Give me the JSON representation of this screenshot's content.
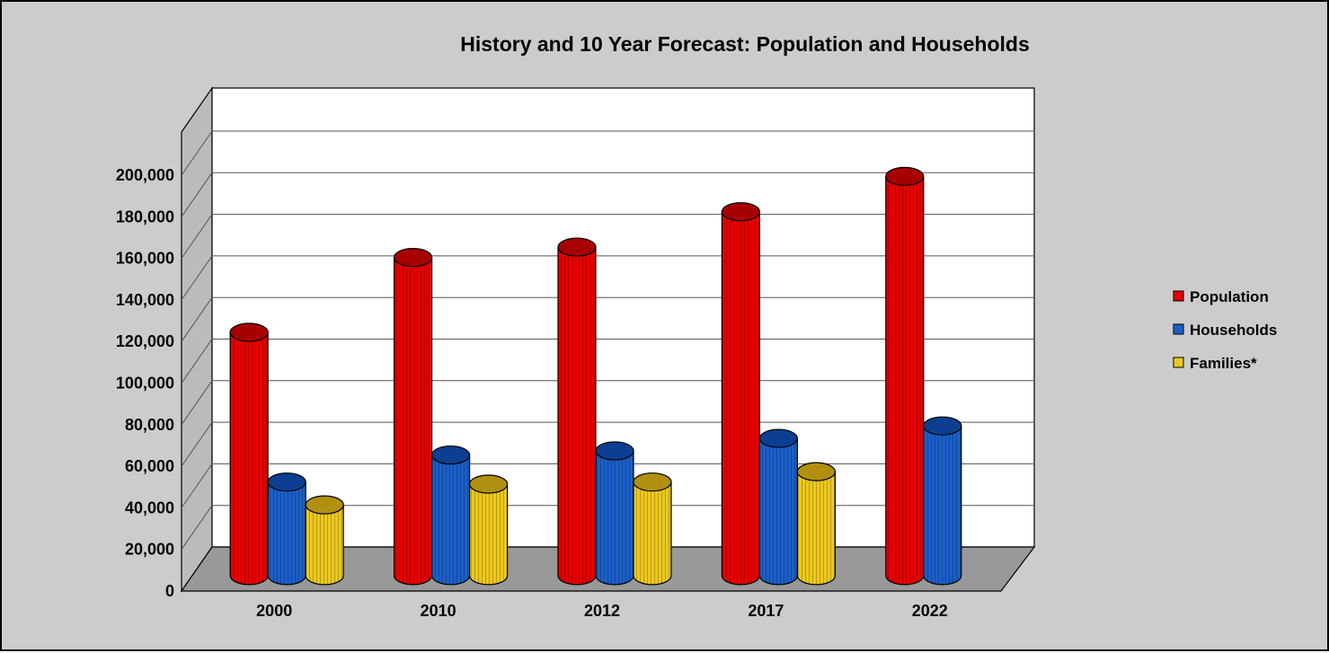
{
  "chart_data": {
    "type": "bar",
    "title": "History and 10 Year Forecast: Population and Households",
    "categories": [
      "2000",
      "2010",
      "2012",
      "2017",
      "2022"
    ],
    "series": [
      {
        "name": "Population",
        "color": "#e60000",
        "top_color": "#a80000",
        "values": [
          117000,
          153000,
          158000,
          175000,
          192000
        ]
      },
      {
        "name": "Households",
        "color": "#1a5fc8",
        "top_color": "#0c3f92",
        "values": [
          45000,
          58000,
          60000,
          66000,
          72000
        ]
      },
      {
        "name": "Families*",
        "color": "#ecc81e",
        "top_color": "#b0900e",
        "values": [
          34000,
          44000,
          45000,
          50000,
          null
        ]
      }
    ],
    "y_ticks": [
      "0",
      "20,000",
      "40,000",
      "60,000",
      "80,000",
      "100,000",
      "120,000",
      "140,000",
      "160,000",
      "180,000",
      "200,000"
    ],
    "ylim": [
      0,
      200000
    ],
    "grid": true,
    "legend_position": "right",
    "style": "3d-cylinder",
    "plot_background": "#ffffff",
    "floor_color": "#999999",
    "wall_color": "#bbbbbb"
  }
}
